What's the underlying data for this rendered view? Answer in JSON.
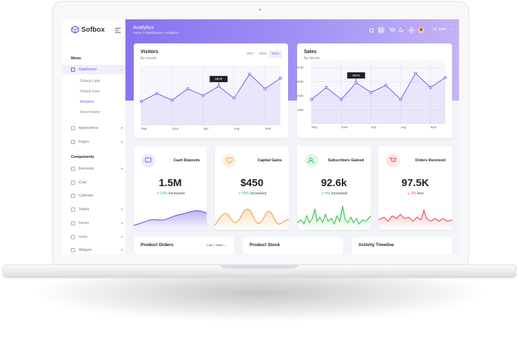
{
  "brand": "Sofbox",
  "sidebar": {
    "menu_heading": "Menu",
    "dashboard": "Dashboard",
    "dashboard_items": [
      "Default Light",
      "Default Dark",
      "Analytics",
      "Smart Home"
    ],
    "menu_items": [
      "Applications",
      "Pages"
    ],
    "components_heading": "Components",
    "component_items": [
      "Elements",
      "Chat",
      "Calendar",
      "Tables",
      "Forms",
      "Icons",
      "Widgets"
    ]
  },
  "header": {
    "title": "Analytics",
    "breadcrumb": "Home > Dashboard > Analytics",
    "user": "Hi' John"
  },
  "chart_data": [
    {
      "type": "line",
      "title": "Visitors",
      "subtitle": "By month",
      "year_tabs": [
        "2017",
        "2018",
        "2019"
      ],
      "categories": [
        "May",
        null,
        "June",
        null,
        "July",
        null,
        "Aug",
        null,
        "Sept",
        null
      ],
      "values": [
        3600,
        4800,
        3800,
        5500,
        4500,
        5878,
        4100,
        7700,
        5500,
        7100
      ],
      "value_labels": [
        null,
        null,
        null,
        null,
        null,
        "5878",
        null,
        null,
        null,
        null
      ],
      "color": "#6c5ce7",
      "ylim": [
        0,
        9000
      ],
      "grid": true
    },
    {
      "type": "line",
      "title": "Sales",
      "subtitle": "By Month",
      "categories": [
        "May",
        null,
        "June",
        null,
        "July",
        null,
        "Aug",
        null,
        "Sept",
        null
      ],
      "values": [
        3500,
        5200,
        3500,
        5878,
        4500,
        5500,
        3500,
        7200,
        5200,
        6600
      ],
      "value_labels": [
        null,
        null,
        null,
        "5878",
        null,
        null,
        null,
        null,
        null,
        null
      ],
      "color": "#6c5ce7",
      "ylim": [
        0,
        9000
      ],
      "yticks": [
        2000,
        4000,
        6000,
        8000
      ],
      "grid": true
    }
  ],
  "stats": [
    {
      "title": "Cash Deposits",
      "value": "1.5M",
      "change": "10%",
      "change_text": "Increased"
    },
    {
      "title": "Capital Gains",
      "value": "$450",
      "change": "20%",
      "change_text": "Increased"
    },
    {
      "title": "Subscribers Gained",
      "value": "92.6k",
      "change": "4%",
      "change_text": "Increased"
    },
    {
      "title": "Orders Received",
      "value": "97.5K",
      "change": "2%",
      "change_text": "less"
    }
  ],
  "bottom_cards": [
    {
      "title": "Product Orders",
      "filter": "Last 7 Days"
    },
    {
      "title": "Product Stock"
    },
    {
      "title": "Activity Timeline"
    }
  ]
}
